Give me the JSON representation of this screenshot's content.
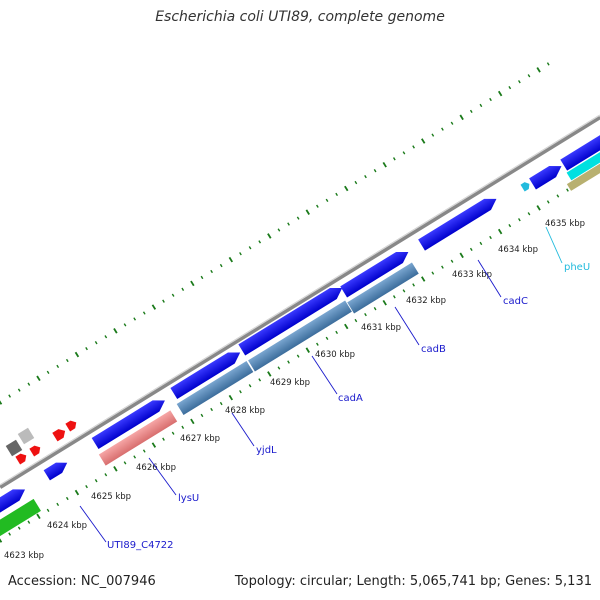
{
  "title": "Escherichia coli UTI89, complete genome",
  "footer": {
    "accession": "Accession: NC_007946",
    "summary": "Topology: circular; Length: 5,065,741 bp; Genes: 5,131"
  },
  "colors": {
    "backbone": "#999999",
    "forward_cds": "#0a0ae8",
    "reverse_cds": "#4a7fb0",
    "trna": "#00dddd",
    "selected": "#ee8888",
    "small_red": "#ee1111",
    "green": "#22bb22",
    "tick": "#1a7a1a",
    "label_blue": "#1a1acc",
    "label_cyan": "#22bbdd"
  },
  "kbp_labels": [
    "4623 kbp",
    "4624 kbp",
    "4625 kbp",
    "4626 kbp",
    "4627 kbp",
    "4628 kbp",
    "4629 kbp",
    "4630 kbp",
    "4631 kbp",
    "4632 kbp",
    "4633 kbp",
    "4634 kbp",
    "4635 kbp"
  ],
  "gene_labels": [
    "UTI89_C4722",
    "lysU",
    "yjdL",
    "cadA",
    "cadB",
    "cadC",
    "pheU"
  ]
}
